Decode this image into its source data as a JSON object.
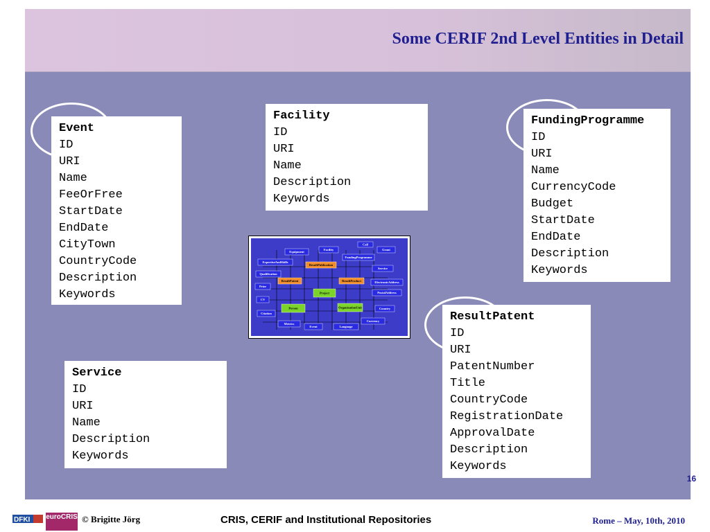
{
  "slide": {
    "title": "Some CERIF 2nd Level Entities in Detail",
    "page_number": "16"
  },
  "entities": [
    {
      "name": "Event",
      "attributes": [
        "ID",
        "URI",
        "Name",
        "FeeOrFree",
        "StartDate",
        "EndDate",
        "CityTown",
        "CountryCode",
        "Description",
        "Keywords"
      ]
    },
    {
      "name": "Facility",
      "attributes": [
        "ID",
        "URI",
        "Name",
        "Description",
        "Keywords"
      ]
    },
    {
      "name": "FundingProgramme",
      "attributes": [
        "ID",
        "URI",
        "Name",
        "CurrencyCode",
        "Budget",
        "StartDate",
        "EndDate",
        "Description",
        "Keywords"
      ]
    },
    {
      "name": "ResultPatent",
      "attributes": [
        "ID",
        "URI",
        "PatentNumber",
        "Title",
        "CountryCode",
        "RegistrationDate",
        "ApprovalDate",
        "Description",
        "Keywords"
      ]
    },
    {
      "name": "Service",
      "attributes": [
        "ID",
        "URI",
        "Name",
        "Description",
        "Keywords"
      ]
    }
  ],
  "diagram": {
    "nodes": [
      "Call",
      "Equipment",
      "Facility",
      "Grant",
      "FundingProgramme",
      "ExpertiseAndSkills",
      "ResultPublication",
      "Service",
      "Qualification",
      "ResultPatent",
      "ResultProduct",
      "ElectronicAddress",
      "Prize",
      "Project",
      "PostalAddress",
      "CV",
      "Person",
      "OrganisationUnit",
      "Country",
      "Citation",
      "Currency",
      "Metrics",
      "Event",
      "Language"
    ]
  },
  "footer": {
    "logo_dfki": "DFKI",
    "logo_eurocris": "euroCRIS",
    "copyright": "© Brigitte Jörg",
    "title": "CRIS, CERIF and Institutional Repositories",
    "date": "Rome – May, 10th, 2010"
  },
  "colors": {
    "slide_background": "#8a8ab8",
    "header_background": "#dcc4de",
    "title_color": "#1f1f8f",
    "entity_box": "#ffffff"
  }
}
